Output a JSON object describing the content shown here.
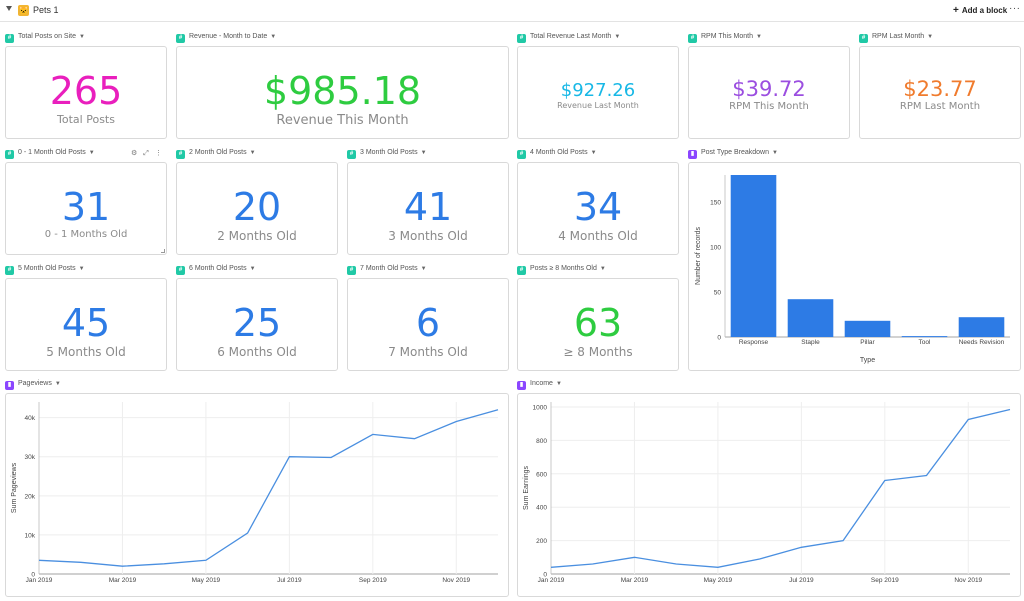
{
  "topbar": {
    "title": "Pets 1",
    "add_block": "Add a block",
    "more": "···"
  },
  "stats": [
    {
      "header": "Total Posts on Site",
      "value": "265",
      "label": "Total Posts",
      "color": "#e91fbd"
    },
    {
      "header": "Revenue - Month to Date",
      "value": "$985.18",
      "label": "Revenue This Month",
      "color": "#2ecc40"
    },
    {
      "header": "Total Revenue Last Month",
      "value": "$927.26",
      "label": "Revenue Last Month",
      "color": "#18b8e6"
    },
    {
      "header": "RPM This Month",
      "value": "$39.72",
      "label": "RPM This Month",
      "color": "#9b4ee0"
    },
    {
      "header": "RPM Last Month",
      "value": "$23.77",
      "label": "RPM Last Month",
      "color": "#f07b2d"
    },
    {
      "header": "0 - 1 Month Old Posts",
      "value": "31",
      "label": "0 - 1 Months Old",
      "color": "#2d7be5"
    },
    {
      "header": "2 Month Old Posts",
      "value": "20",
      "label": "2 Months Old",
      "color": "#2d7be5"
    },
    {
      "header": "3 Month Old Posts",
      "value": "41",
      "label": "3 Months Old",
      "color": "#2d7be5"
    },
    {
      "header": "4 Month Old Posts",
      "value": "34",
      "label": "4 Months Old",
      "color": "#2d7be5"
    },
    {
      "header": "5 Month Old Posts",
      "value": "45",
      "label": "5 Months Old",
      "color": "#2d7be5"
    },
    {
      "header": "6 Month Old Posts",
      "value": "25",
      "label": "6 Months Old",
      "color": "#2d7be5"
    },
    {
      "header": "7 Month Old Posts",
      "value": "6",
      "label": "7 Months Old",
      "color": "#2d7be5"
    },
    {
      "header": "Posts ≥ 8 Months Old",
      "value": "63",
      "label": "≥ 8 Months",
      "color": "#2ecc40"
    }
  ],
  "chart_data": [
    {
      "header": "Post Type Breakdown",
      "type": "bar",
      "categories": [
        "Response",
        "Staple",
        "Pillar",
        "Tool",
        "Needs Revision"
      ],
      "values": [
        180,
        42,
        18,
        1,
        22
      ],
      "xlabel": "Type",
      "ylabel": "Number of records",
      "ylim": [
        0,
        180
      ],
      "yticks": [
        "0",
        "50",
        "100",
        "150"
      ],
      "color": "#2d7be5",
      "grid": false
    },
    {
      "header": "Pageviews",
      "type": "line",
      "x": [
        "Jan 2019",
        "Feb 2019",
        "Mar 2019",
        "Apr 2019",
        "May 2019",
        "Jun 2019",
        "Jul 2019",
        "Aug 2019",
        "Sep 2019",
        "Oct 2019",
        "Nov 2019",
        "Dec 2019"
      ],
      "values": [
        3500,
        3000,
        2000,
        2600,
        3500,
        10500,
        30000,
        29800,
        35700,
        34600,
        39000,
        42000
      ],
      "xticks": [
        "Jan 2019",
        "Mar 2019",
        "May 2019",
        "Jul 2019",
        "Sep 2019",
        "Nov 2019"
      ],
      "yticks": [
        "0",
        "10k",
        "20k",
        "30k",
        "40k"
      ],
      "ylabel": "Sum Pageviews",
      "ylim": [
        0,
        44000
      ],
      "color": "#4a8fe0",
      "grid": true
    },
    {
      "header": "Income",
      "type": "line",
      "x": [
        "Jan 2019",
        "Feb 2019",
        "Mar 2019",
        "Apr 2019",
        "May 2019",
        "Jun 2019",
        "Jul 2019",
        "Aug 2019",
        "Sep 2019",
        "Oct 2019",
        "Nov 2019",
        "Dec 2019"
      ],
      "values": [
        40,
        60,
        100,
        60,
        40,
        90,
        160,
        200,
        560,
        590,
        925,
        985
      ],
      "xticks": [
        "Jan 2019",
        "Mar 2019",
        "May 2019",
        "Jul 2019",
        "Sep 2019",
        "Nov 2019"
      ],
      "yticks": [
        "0",
        "200",
        "400",
        "600",
        "800",
        "1000"
      ],
      "ylabel": "Sum Earnings",
      "ylim": [
        0,
        1030
      ],
      "color": "#4a8fe0",
      "grid": true
    }
  ]
}
